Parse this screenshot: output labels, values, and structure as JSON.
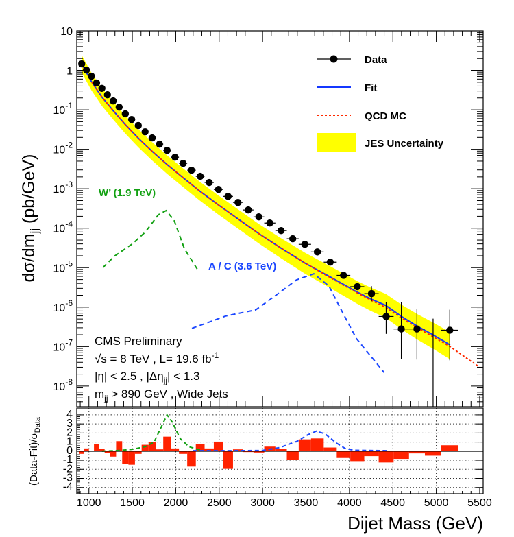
{
  "chart_data": [
    {
      "type": "scatter",
      "panel": "main",
      "ylabel": {
        "main": "dσ/dm",
        "sub": "jj",
        "rest": " (pb/GeV)"
      },
      "xlim": [
        860,
        5540
      ],
      "ylim": [
        3e-09,
        10
      ],
      "yscale": "log",
      "y_ticks": [
        {
          "value": 10,
          "label": "10",
          "exp": ""
        },
        {
          "value": 1,
          "label": "1",
          "exp": ""
        },
        {
          "value": 0.1,
          "label": "10",
          "exp": "-1"
        },
        {
          "value": 0.01,
          "label": "10",
          "exp": "-2"
        },
        {
          "value": 0.001,
          "label": "10",
          "exp": "-3"
        },
        {
          "value": 0.0001,
          "label": "10",
          "exp": "-4"
        },
        {
          "value": 1e-05,
          "label": "10",
          "exp": "-5"
        },
        {
          "value": 1e-06,
          "label": "10",
          "exp": "-6"
        },
        {
          "value": 1e-07,
          "label": "10",
          "exp": "-7"
        },
        {
          "value": 1e-08,
          "label": "10",
          "exp": "-8"
        }
      ],
      "bin_edges": [
        890,
        944,
        1000,
        1058,
        1118,
        1181,
        1246,
        1313,
        1383,
        1455,
        1530,
        1607,
        1687,
        1770,
        1856,
        1945,
        2037,
        2132,
        2231,
        2332,
        2438,
        2546,
        2659,
        2775,
        2895,
        3019,
        3147,
        3279,
        3416,
        3558,
        3704,
        3854,
        4010,
        4171,
        4337,
        4509,
        4686,
        4869,
        5058,
        5253
      ],
      "series": [
        {
          "name": "Data",
          "kind": "points",
          "color": "#000000",
          "values": [
            1.46,
            1.02,
            0.71,
            0.48,
            0.35,
            0.24,
            0.168,
            0.117,
            0.079,
            0.057,
            0.04,
            0.0277,
            0.0194,
            0.0135,
            0.0094,
            0.0063,
            0.0044,
            0.00295,
            0.00206,
            0.00144,
            0.00096,
            0.00064,
            0.00045,
            0.00029,
            0.000194,
            0.000135,
            8.7e-05,
            5.4e-05,
            3.9e-05,
            2.5e-05,
            1.38e-05,
            6.4e-06,
            3.3e-06,
            2.2e-06,
            5.8e-07,
            2.8e-07,
            2.8e-07,
            null,
            2.6e-07
          ],
          "yerr": {
            "33": [
              1.4e-06,
              3.4e-06
            ],
            "34": [
              2.1e-07,
              1.35e-06
            ],
            "35": [
              4.9e-08,
              1.35e-06
            ],
            "36": [
              4.7e-08,
              9e-07
            ],
            "37": [
              1e-09,
              5.1e-07
            ],
            "38": [
              4.5e-08,
              8.6e-07
            ]
          }
        },
        {
          "name": "Fit",
          "kind": "line",
          "color": "#1438ff",
          "x": [
            917,
            1029,
            1150,
            1280,
            1420,
            1570,
            1730,
            1900,
            2085,
            2280,
            2490,
            2720,
            2960,
            3215,
            3490,
            3780,
            3930,
            4090,
            4250,
            4420,
            4600,
            4780,
            4960,
            5160
          ],
          "y": [
            1.46,
            0.52,
            0.21,
            0.095,
            0.042,
            0.019,
            0.0088,
            0.0041,
            0.0019,
            0.00086,
            0.00039,
            0.00017,
            7.2e-05,
            3.1e-05,
            1.3e-05,
            5.8e-06,
            3.8e-06,
            2.4e-06,
            1.6e-06,
            1.1e-06,
            5.8e-07,
            3.3e-07,
            2e-07,
            1.1e-07
          ]
        },
        {
          "name": "QCD MC",
          "kind": "dashed-line",
          "color": "#ff2a00",
          "x": [
            917,
            1029,
            1150,
            1280,
            1420,
            1570,
            1730,
            1900,
            2085,
            2280,
            2490,
            2720,
            2960,
            3215,
            3490,
            3780,
            3930,
            4090,
            4250,
            4420,
            4600,
            4780,
            4960,
            5160,
            5500
          ],
          "y": [
            1.46,
            0.52,
            0.21,
            0.095,
            0.042,
            0.019,
            0.0088,
            0.0041,
            0.0019,
            0.00086,
            0.00039,
            0.00017,
            7.2e-05,
            3.1e-05,
            1.3e-05,
            5.6e-06,
            3.6e-06,
            2.3e-06,
            1.5e-06,
            9.8e-07,
            5.3e-07,
            3e-07,
            1.8e-07,
            1e-07,
            3e-08
          ]
        },
        {
          "name": "JES Uncertainty",
          "kind": "band",
          "color": "#ffff00",
          "relative_halfwidth": [
            [
              890,
              0.04
            ],
            [
              3000,
              0.1
            ],
            [
              4200,
              0.2
            ],
            [
              5253,
              0.32
            ]
          ]
        },
        {
          "name": "W' (1.9 TeV)",
          "kind": "dashed-line",
          "color": "#11a011",
          "x": [
            1160,
            1300,
            1500,
            1650,
            1800,
            1890,
            1980,
            2100,
            2265
          ],
          "y": [
            1e-05,
            2e-05,
            4e-05,
            8e-05,
            0.00022,
            0.00028,
            0.00016,
            3e-05,
            8e-06
          ]
        },
        {
          "name": "A / C (3.6 TeV)",
          "kind": "dashed-line",
          "color": "#1a46ff",
          "x": [
            2186,
            2580,
            2920,
            3180,
            3390,
            3590,
            3765,
            3900,
            4080,
            4400
          ],
          "y": [
            2.9e-07,
            6e-07,
            8.5e-07,
            2.2e-06,
            4.9e-06,
            7e-06,
            3.4e-06,
            9e-07,
            1.6e-07,
            2.2e-08
          ]
        }
      ]
    },
    {
      "type": "bar",
      "panel": "residual",
      "ylabel": {
        "main": "(Data-Fit)/σ",
        "sub": "Data"
      },
      "xlabel": "Dijet Mass (GeV)",
      "xlim": [
        860,
        5540
      ],
      "ylim": [
        -4.7,
        4.75
      ],
      "x_ticks": [
        1000,
        1500,
        2000,
        2500,
        3000,
        3500,
        4000,
        4500,
        5000,
        5500
      ],
      "y_ticks": [
        4,
        3,
        2,
        1,
        0,
        -1,
        -2,
        -3,
        -4
      ],
      "grid": true,
      "residuals": [
        -0.3,
        0.3,
        0,
        0.8,
        0.25,
        -0.2,
        -0.6,
        1.1,
        -1.4,
        -1.5,
        -0.3,
        0.7,
        1.0,
        0.2,
        1.6,
        0.3,
        -0.3,
        -1.7,
        0.75,
        0.3,
        1.05,
        -1.95,
        0.2,
        -0.1,
        -0.15,
        0.5,
        0.25,
        -0.95,
        1.3,
        1.4,
        0.4,
        -0.75,
        -1.1,
        -0.55,
        -1.25,
        -0.85,
        -0.25,
        -0.5,
        0.65
      ],
      "residual_color": "#ff2200",
      "signals": [
        {
          "name": "W' (1.9 TeV)",
          "color": "#11a011",
          "x": [
            1150,
            1300,
            1500,
            1650,
            1750,
            1850,
            1900,
            1960,
            2050,
            2150,
            2250,
            2300
          ],
          "y": [
            0,
            0.05,
            0.2,
            0.5,
            1.0,
            3.0,
            4.0,
            3.2,
            1.4,
            0.5,
            0.2,
            0.1
          ]
        },
        {
          "name": "A / C (3.6 TeV)",
          "color": "#1a46ff",
          "x": [
            2200,
            2600,
            3000,
            3200,
            3400,
            3520,
            3620,
            3720,
            3850,
            3950,
            4050,
            4450
          ],
          "y": [
            0.05,
            0.05,
            0.08,
            0.4,
            1.1,
            1.8,
            2.2,
            1.9,
            0.9,
            0.3,
            0.1,
            0.05
          ]
        }
      ]
    }
  ],
  "legend": {
    "position": "top-right",
    "items": [
      "Data",
      "Fit",
      "QCD MC",
      "JES Uncertainty"
    ]
  },
  "annotations": {
    "wprime": "W’ (1.9 TeV)",
    "ac": "A / C (3.6 TeV)",
    "experiment": "CMS Preliminary",
    "energy_a": "√s = 8 TeV , L= 19.6 fb",
    "energy_exp": "-1",
    "eta_a": "|η| < 2.5 , |Δη",
    "eta_sub": "jj",
    "eta_b": "| < 1.3",
    "mjj_a": "m",
    "mjj_sub": "jj",
    "mjj_b": " > 890 GeV , Wide Jets"
  }
}
